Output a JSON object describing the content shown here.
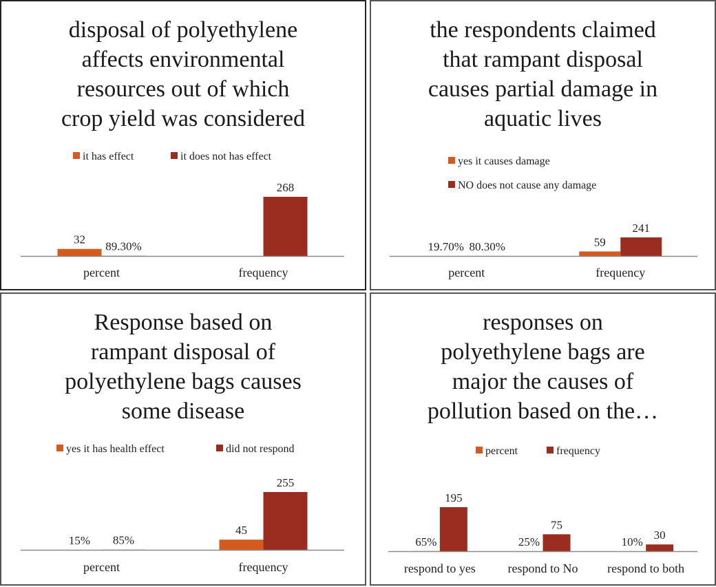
{
  "colors": {
    "series1": "#D55A1E",
    "series2": "#9B2D20",
    "axis": "#8a8a8a"
  },
  "chart_data": [
    {
      "type": "bar",
      "title_lines": [
        "disposal of polyethylene",
        "affects environmental",
        "resources out of which",
        "crop yield was considered"
      ],
      "categories": [
        "percent",
        "frequency"
      ],
      "legend_position": "top",
      "series": [
        {
          "name": "it has effect",
          "values": [
            32,
            null
          ],
          "labels": [
            "32",
            ""
          ]
        },
        {
          "name": "it  does not has effect",
          "values": [
            0.893,
            268
          ],
          "labels": [
            "89.30%",
            "268"
          ]
        }
      ]
    },
    {
      "type": "bar",
      "title_lines": [
        "the respondents claimed",
        "that rampant disposal",
        "causes partial damage in",
        "aquatic lives"
      ],
      "categories": [
        "percent",
        "frequency"
      ],
      "legend_position": "top-stacked",
      "series": [
        {
          "name": "yes it causes damage",
          "values": [
            0.197,
            59
          ],
          "labels": [
            "19.70%",
            "59"
          ]
        },
        {
          "name": "NO does not cause any damage",
          "values": [
            0.803,
            241
          ],
          "labels": [
            "80.30%",
            "241"
          ]
        }
      ]
    },
    {
      "type": "bar",
      "title_lines": [
        "Response based on",
        "rampant disposal of",
        "polyethylene bags causes",
        "some disease"
      ],
      "categories": [
        "percent",
        "frequency"
      ],
      "legend_position": "top",
      "series": [
        {
          "name": "yes it has health effect",
          "values": [
            0.15,
            45
          ],
          "labels": [
            "15%",
            "45"
          ]
        },
        {
          "name": "did not respond",
          "values": [
            0.85,
            255
          ],
          "labels": [
            "85%",
            "255"
          ]
        }
      ]
    },
    {
      "type": "bar",
      "title_lines": [
        "responses on",
        "polyethylene bags are",
        "major the causes of",
        "pollution based on the…"
      ],
      "categories": [
        "respond to yes",
        "respond to No",
        "respond to both"
      ],
      "legend_position": "top",
      "series": [
        {
          "name": "percent",
          "values": [
            0.65,
            0.25,
            0.1
          ],
          "labels": [
            "65%",
            "25%",
            "10%"
          ]
        },
        {
          "name": "frequency",
          "values": [
            195,
            75,
            30
          ],
          "labels": [
            "195",
            "75",
            "30"
          ]
        }
      ]
    }
  ]
}
